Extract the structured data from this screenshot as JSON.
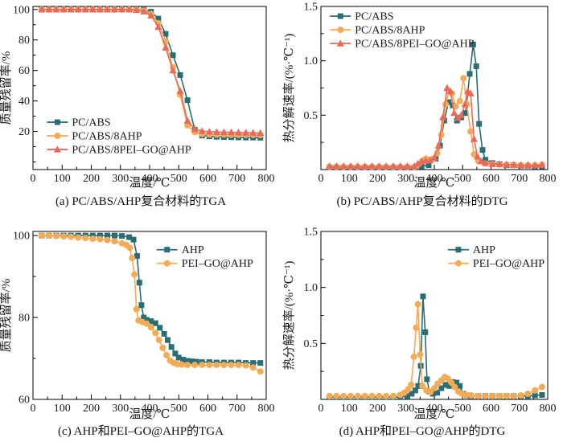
{
  "figure": {
    "background": "#ffffff"
  },
  "colors": {
    "teal": "#2a6d75",
    "orange": "#f3ab55",
    "red": "#ea6a5a",
    "axis": "#000000",
    "text": "#1a1a1a"
  },
  "chart_data": [
    {
      "id": "a",
      "type": "line",
      "caption": "(a) PC/ABS/AHP复合材料的TGA",
      "xlabel": "温度/℃",
      "ylabel": "质量残留率/%",
      "xlim": [
        0,
        800
      ],
      "ylim": [
        -5,
        102
      ],
      "xticks": [
        0,
        100,
        200,
        300,
        400,
        500,
        600,
        700,
        800
      ],
      "yticks": [
        20,
        40,
        60,
        80,
        100
      ],
      "x_minor_step": 50,
      "y_minor_step": 10,
      "grid": false,
      "legend_fx": 0.06,
      "legend_fy": 0.68,
      "series": [
        {
          "name": "PC/ABS",
          "color_key": "teal",
          "marker": "square",
          "x": [
            30,
            55,
            80,
            105,
            130,
            155,
            180,
            205,
            230,
            255,
            280,
            305,
            330,
            355,
            380,
            405,
            430,
            455,
            480,
            505,
            530,
            555,
            580,
            605,
            630,
            655,
            680,
            705,
            730,
            755,
            780
          ],
          "y": [
            100,
            100,
            100,
            100,
            100,
            100,
            100,
            100,
            100,
            100,
            100,
            100,
            100,
            100,
            99.8,
            98.5,
            94,
            84,
            70,
            57,
            40.5,
            21,
            17.3,
            16.8,
            16.5,
            16.3,
            16.2,
            16.1,
            16,
            16,
            15.9
          ]
        },
        {
          "name": "PC/ABS/8AHP",
          "color_key": "orange",
          "marker": "circle",
          "x": [
            30,
            55,
            80,
            105,
            130,
            155,
            180,
            205,
            230,
            255,
            280,
            305,
            330,
            355,
            380,
            405,
            430,
            455,
            480,
            505,
            530,
            555,
            580,
            605,
            630,
            655,
            680,
            705,
            730,
            755,
            780
          ],
          "y": [
            100,
            100,
            100,
            100,
            100,
            100,
            100,
            100,
            100,
            100,
            100,
            100,
            100,
            99.8,
            99.3,
            97,
            91,
            79,
            62,
            44,
            24,
            19.5,
            18.3,
            18,
            17.9,
            17.9,
            17.8,
            17.8,
            17.7,
            17.7,
            17.6
          ]
        },
        {
          "name": "PC/ABS/8PEI–GO@AHP",
          "color_key": "red",
          "marker": "triangle",
          "x": [
            30,
            55,
            80,
            105,
            130,
            155,
            180,
            205,
            230,
            255,
            280,
            305,
            330,
            355,
            380,
            405,
            430,
            455,
            480,
            505,
            530,
            555,
            580,
            605,
            630,
            655,
            680,
            705,
            730,
            755,
            780
          ],
          "y": [
            100,
            100,
            100,
            100,
            100,
            100,
            100,
            100,
            100,
            100,
            100,
            100,
            100,
            99.6,
            98.7,
            96,
            88.5,
            75,
            60,
            46.5,
            27,
            21.5,
            20.2,
            19.8,
            19.6,
            19.5,
            19.4,
            19.3,
            19.2,
            19.1,
            19
          ]
        }
      ]
    },
    {
      "id": "b",
      "type": "line",
      "caption": "(b) PC/ABS/AHP复合材料的DTG",
      "xlabel": "温度/℃",
      "ylabel": "热分解速率/(%·℃⁻¹)",
      "xlim": [
        0,
        800
      ],
      "ylim": [
        0,
        1.5
      ],
      "xticks": [
        0,
        100,
        200,
        300,
        400,
        500,
        600,
        700,
        800
      ],
      "yticks": [
        0.5,
        1.0,
        1.5
      ],
      "x_minor_step": 50,
      "y_minor_step": 0.25,
      "grid": false,
      "legend_fx": 0.04,
      "legend_fy": 0.03,
      "series": [
        {
          "name": "PC/ABS",
          "color_key": "teal",
          "marker": "square",
          "x": [
            30,
            55,
            80,
            105,
            130,
            155,
            180,
            205,
            230,
            255,
            280,
            305,
            330,
            355,
            380,
            405,
            420,
            435,
            450,
            465,
            480,
            495,
            510,
            525,
            537,
            548,
            558,
            570,
            580,
            605,
            630,
            655,
            680,
            705,
            730,
            755,
            780
          ],
          "y": [
            0.02,
            0.02,
            0.02,
            0.02,
            0.02,
            0.02,
            0.02,
            0.02,
            0.02,
            0.02,
            0.02,
            0.02,
            0.02,
            0.03,
            0.04,
            0.1,
            0.22,
            0.45,
            0.62,
            0.59,
            0.45,
            0.48,
            0.52,
            0.88,
            1.15,
            0.95,
            0.42,
            0.18,
            0.09,
            0.06,
            0.05,
            0.04,
            0.04,
            0.035,
            0.035,
            0.03,
            0.03
          ]
        },
        {
          "name": "PC/ABS/8AHP",
          "color_key": "orange",
          "marker": "circle",
          "x": [
            30,
            55,
            80,
            105,
            130,
            155,
            180,
            205,
            230,
            255,
            280,
            305,
            330,
            345,
            358,
            370,
            383,
            396,
            410,
            425,
            440,
            452,
            462,
            475,
            490,
            503,
            515,
            528,
            540,
            555,
            580,
            605,
            630,
            655,
            680,
            705,
            730,
            755,
            780
          ],
          "y": [
            0.025,
            0.025,
            0.025,
            0.025,
            0.025,
            0.025,
            0.025,
            0.025,
            0.025,
            0.025,
            0.025,
            0.025,
            0.025,
            0.05,
            0.08,
            0.1,
            0.09,
            0.1,
            0.15,
            0.32,
            0.6,
            0.72,
            0.7,
            0.58,
            0.63,
            0.84,
            0.6,
            0.35,
            0.14,
            0.08,
            0.055,
            0.05,
            0.045,
            0.045,
            0.04,
            0.04,
            0.04,
            0.04,
            0.045
          ]
        },
        {
          "name": "PC/ABS/8PEI–GO@AHP",
          "color_key": "red",
          "marker": "triangle",
          "x": [
            30,
            55,
            80,
            105,
            130,
            155,
            180,
            205,
            230,
            255,
            280,
            305,
            330,
            342,
            355,
            370,
            385,
            400,
            415,
            430,
            445,
            457,
            470,
            483,
            495,
            508,
            518,
            528,
            540,
            552,
            565,
            580,
            605,
            630,
            655,
            680,
            705,
            730,
            755,
            780
          ],
          "y": [
            0.03,
            0.03,
            0.03,
            0.03,
            0.03,
            0.03,
            0.03,
            0.03,
            0.03,
            0.03,
            0.03,
            0.03,
            0.03,
            0.055,
            0.075,
            0.08,
            0.085,
            0.11,
            0.22,
            0.48,
            0.75,
            0.72,
            0.52,
            0.475,
            0.5,
            0.6,
            0.72,
            0.7,
            0.28,
            0.12,
            0.075,
            0.06,
            0.05,
            0.05,
            0.045,
            0.045,
            0.04,
            0.04,
            0.04,
            0.045
          ]
        }
      ]
    },
    {
      "id": "c",
      "type": "line",
      "caption": "(c) AHP和PEI–GO@AHP的TGA",
      "xlabel": "温度/℃",
      "ylabel": "质量残留率/%",
      "xlim": [
        0,
        800
      ],
      "ylim": [
        60,
        101
      ],
      "xticks": [
        0,
        100,
        200,
        300,
        400,
        500,
        600,
        700,
        800
      ],
      "yticks": [
        60,
        80,
        100
      ],
      "x_minor_step": 50,
      "y_minor_step": 10,
      "grid": false,
      "legend_fx": 0.53,
      "legend_fy": 0.08,
      "series": [
        {
          "name": "AHP",
          "color_key": "teal",
          "marker": "square",
          "x": [
            30,
            55,
            80,
            105,
            130,
            155,
            180,
            205,
            230,
            255,
            280,
            305,
            330,
            345,
            357,
            365,
            372,
            380,
            390,
            405,
            420,
            435,
            450,
            462,
            475,
            488,
            500,
            515,
            530,
            545,
            560,
            580,
            605,
            630,
            655,
            680,
            705,
            730,
            755,
            780
          ],
          "y": [
            100,
            100,
            100,
            100,
            100,
            100,
            100,
            100,
            100,
            100,
            100,
            99.9,
            99.6,
            99,
            95,
            88.5,
            83,
            80,
            79.4,
            79.1,
            78.6,
            77.5,
            76,
            74.5,
            72.8,
            71.2,
            70.2,
            69.7,
            69.4,
            69.3,
            69.2,
            69.1,
            69.1,
            69,
            69,
            69,
            69,
            68.9,
            68.9,
            68.9
          ]
        },
        {
          "name": "PEI–GO@AHP",
          "color_key": "orange",
          "marker": "circle",
          "x": [
            30,
            55,
            80,
            105,
            130,
            155,
            180,
            205,
            230,
            255,
            280,
            305,
            320,
            332,
            340,
            348,
            355,
            362,
            375,
            390,
            405,
            420,
            432,
            445,
            458,
            470,
            483,
            495,
            510,
            530,
            555,
            580,
            605,
            630,
            655,
            680,
            705,
            730,
            755,
            780
          ],
          "y": [
            100,
            100,
            99.9,
            99.8,
            99.7,
            99.5,
            99.4,
            99.2,
            99.1,
            98.9,
            98.6,
            98.1,
            97.7,
            97,
            94.5,
            90.5,
            82,
            79.3,
            78.9,
            78.5,
            77.6,
            76.2,
            74.5,
            72.6,
            70.8,
            69.5,
            68.9,
            68.6,
            68.5,
            68.4,
            68.4,
            68.4,
            68.4,
            68.4,
            68.4,
            68.4,
            68.4,
            68.3,
            67.8,
            66.8
          ]
        }
      ]
    },
    {
      "id": "d",
      "type": "line",
      "caption": "(d) AHP和PEI–GO@AHP的DTG",
      "xlabel": "温度/℃",
      "ylabel": "热分解速率/(%·℃⁻¹)",
      "xlim": [
        0,
        800
      ],
      "ylim": [
        0,
        1.5
      ],
      "xticks": [
        0,
        100,
        200,
        300,
        400,
        500,
        600,
        700,
        800
      ],
      "yticks": [
        0.5,
        1.0,
        1.5
      ],
      "x_minor_step": 50,
      "y_minor_step": 0.25,
      "grid": false,
      "legend_fx": 0.56,
      "legend_fy": 0.08,
      "series": [
        {
          "name": "AHP",
          "color_key": "teal",
          "marker": "square",
          "x": [
            30,
            55,
            80,
            105,
            130,
            155,
            180,
            205,
            230,
            255,
            280,
            305,
            320,
            333,
            343,
            352,
            360,
            368,
            374,
            382,
            395,
            410,
            425,
            440,
            452,
            465,
            478,
            490,
            502,
            515,
            530,
            555,
            580,
            605,
            630,
            655,
            680,
            705,
            730,
            755,
            780
          ],
          "y": [
            0.02,
            0.02,
            0.02,
            0.02,
            0.02,
            0.02,
            0.02,
            0.02,
            0.02,
            0.02,
            0.02,
            0.03,
            0.05,
            0.08,
            0.12,
            0.3,
            0.92,
            0.6,
            0.18,
            0.07,
            0.05,
            0.06,
            0.1,
            0.13,
            0.12,
            0.155,
            0.15,
            0.12,
            0.05,
            0.035,
            0.03,
            0.03,
            0.03,
            0.03,
            0.03,
            0.03,
            0.03,
            0.03,
            0.03,
            0.035,
            0.04
          ]
        },
        {
          "name": "PEI–GO@AHP",
          "color_key": "orange",
          "marker": "circle",
          "x": [
            30,
            55,
            80,
            105,
            130,
            155,
            180,
            205,
            230,
            255,
            280,
            295,
            308,
            318,
            328,
            336,
            342,
            350,
            358,
            372,
            386,
            400,
            412,
            425,
            437,
            448,
            460,
            472,
            485,
            498,
            512,
            530,
            555,
            580,
            605,
            630,
            655,
            680,
            705,
            730,
            755,
            780
          ],
          "y": [
            0.03,
            0.03,
            0.03,
            0.03,
            0.03,
            0.03,
            0.03,
            0.03,
            0.03,
            0.03,
            0.04,
            0.06,
            0.09,
            0.13,
            0.38,
            0.64,
            0.85,
            0.4,
            0.12,
            0.08,
            0.065,
            0.1,
            0.14,
            0.17,
            0.2,
            0.185,
            0.15,
            0.11,
            0.07,
            0.05,
            0.04,
            0.035,
            0.03,
            0.03,
            0.03,
            0.03,
            0.03,
            0.03,
            0.035,
            0.05,
            0.08,
            0.11
          ]
        }
      ]
    }
  ]
}
